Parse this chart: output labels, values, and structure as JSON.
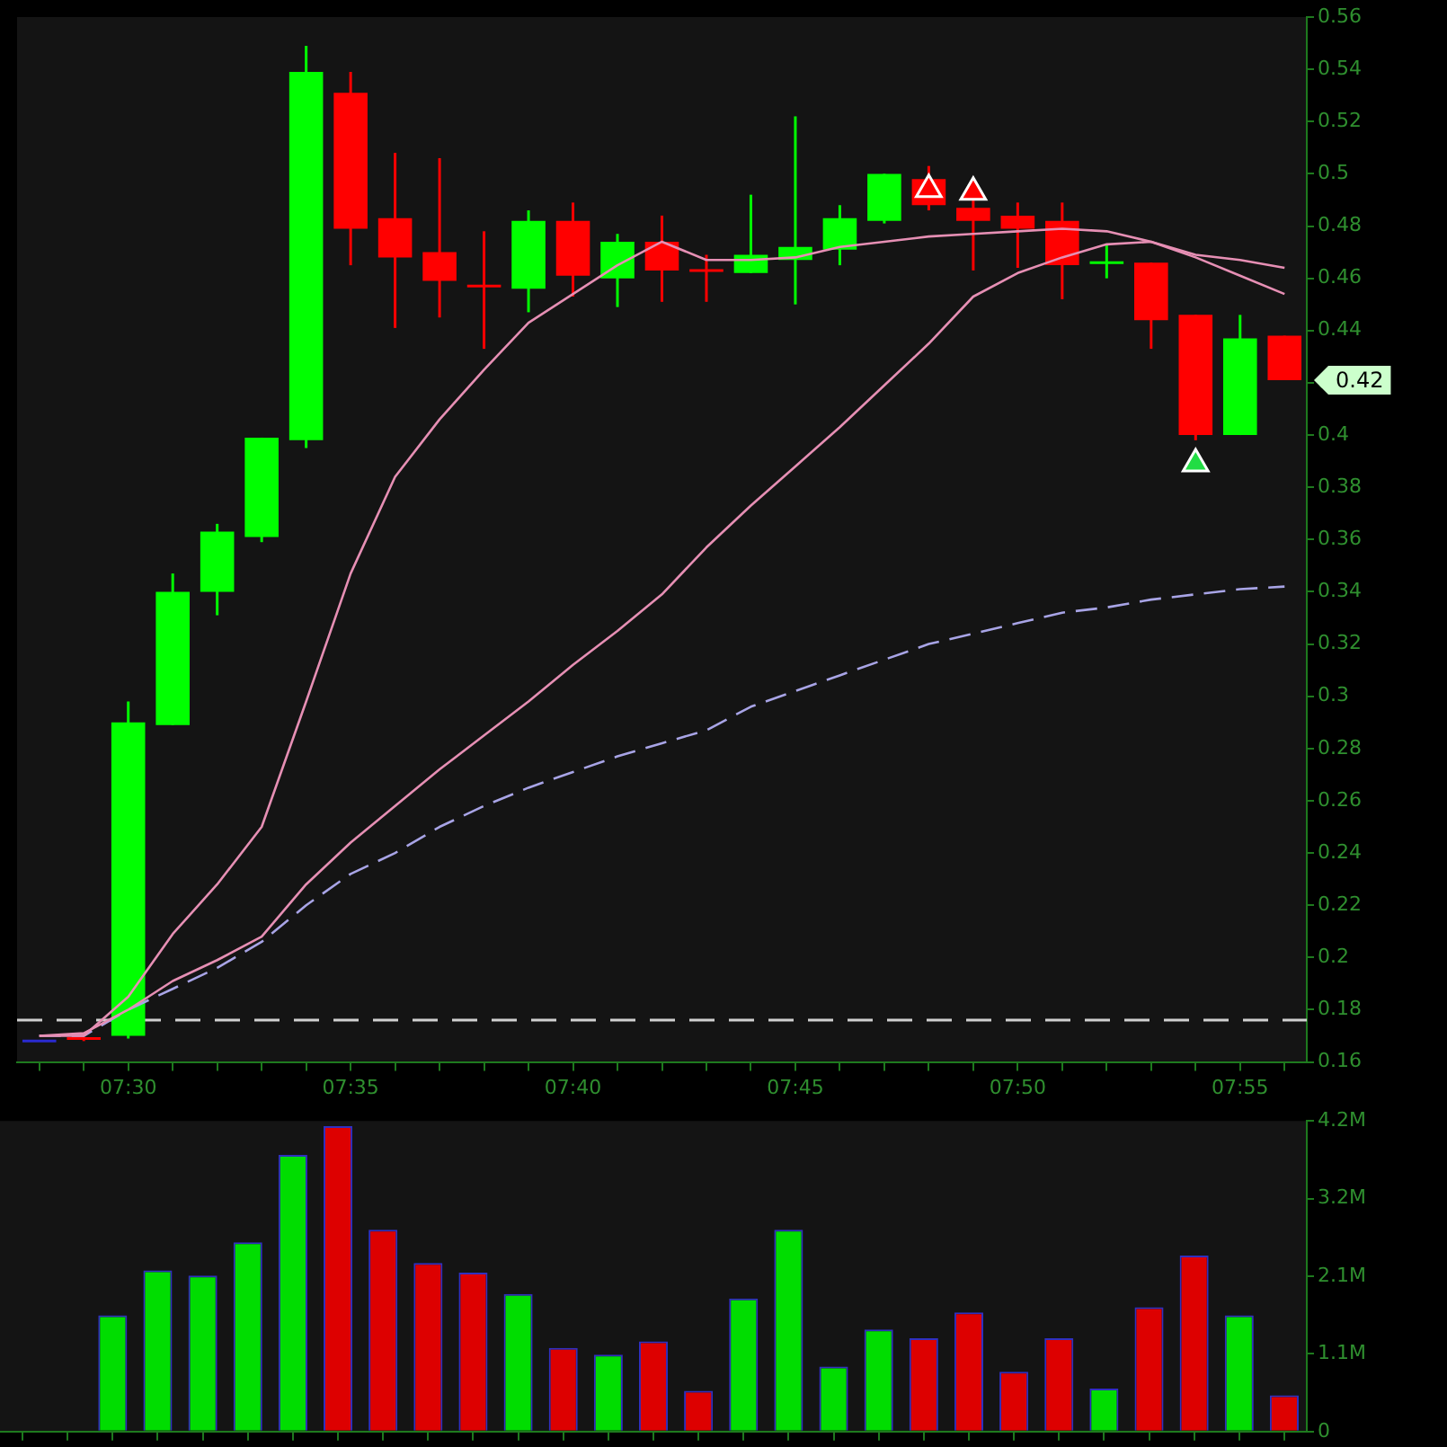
{
  "chart_data": [
    {
      "type": "candlestick",
      "categories": [
        null,
        null,
        "07:30",
        null,
        null,
        null,
        null,
        "07:35",
        null,
        null,
        null,
        null,
        "07:40",
        null,
        null,
        null,
        null,
        "07:45",
        null,
        null,
        null,
        null,
        "07:50",
        null,
        null,
        null,
        null,
        "07:55",
        null
      ],
      "ohlc": [
        [
          0.168,
          0.168,
          0.168,
          0.168
        ],
        [
          0.169,
          0.169,
          0.168,
          0.168
        ],
        [
          0.17,
          0.298,
          0.169,
          0.29
        ],
        [
          0.289,
          0.347,
          0.289,
          0.34
        ],
        [
          0.34,
          0.366,
          0.331,
          0.363
        ],
        [
          0.361,
          0.399,
          0.359,
          0.399
        ],
        [
          0.398,
          0.549,
          0.395,
          0.539
        ],
        [
          0.531,
          0.539,
          0.465,
          0.479
        ],
        [
          0.483,
          0.508,
          0.441,
          0.468
        ],
        [
          0.47,
          0.506,
          0.445,
          0.459
        ],
        [
          0.457,
          0.478,
          0.433,
          0.457
        ],
        [
          0.456,
          0.486,
          0.447,
          0.482
        ],
        [
          0.482,
          0.489,
          0.453,
          0.461
        ],
        [
          0.46,
          0.477,
          0.449,
          0.474
        ],
        [
          0.474,
          0.484,
          0.451,
          0.463
        ],
        [
          0.463,
          0.469,
          0.451,
          0.463
        ],
        [
          0.462,
          0.492,
          0.462,
          0.469
        ],
        [
          0.467,
          0.522,
          0.45,
          0.472
        ],
        [
          0.471,
          0.488,
          0.465,
          0.483
        ],
        [
          0.482,
          0.5,
          0.481,
          0.5
        ],
        [
          0.498,
          0.503,
          0.486,
          0.488
        ],
        [
          0.487,
          0.495,
          0.463,
          0.482
        ],
        [
          0.484,
          0.489,
          0.464,
          0.479
        ],
        [
          0.482,
          0.489,
          0.452,
          0.465
        ],
        [
          0.466,
          0.473,
          0.46,
          0.466
        ],
        [
          0.466,
          0.466,
          0.433,
          0.444
        ],
        [
          0.446,
          0.446,
          0.398,
          0.4
        ],
        [
          0.4,
          0.446,
          0.4,
          0.437
        ],
        [
          0.438,
          0.438,
          0.421,
          0.421
        ]
      ],
      "colors": [
        "#2a2ad0",
        "#ff0000",
        "#00ff00",
        "#00ff00",
        "#00ff00",
        "#00ff00",
        "#00ff00",
        "#ff0000",
        "#ff0000",
        "#ff0000",
        "#ff0000",
        "#00ff00",
        "#ff0000",
        "#00ff00",
        "#ff0000",
        "#ff0000",
        "#00ff00",
        "#00ff00",
        "#00ff00",
        "#00ff00",
        "#ff0000",
        "#ff0000",
        "#ff0000",
        "#ff0000",
        "#00ff00",
        "#ff0000",
        "#ff0000",
        "#00ff00",
        "#ff0000"
      ],
      "series": [
        {
          "type": "line",
          "color": "#e68fb4",
          "values": [
            0.17,
            0.17,
            0.185,
            0.209,
            0.228,
            0.25,
            0.298,
            0.347,
            0.384,
            0.406,
            0.425,
            0.443,
            0.454,
            0.465,
            0.474,
            0.467,
            0.467,
            0.468,
            0.472,
            0.474,
            0.476,
            0.477,
            0.478,
            0.479,
            0.478,
            0.474,
            0.468,
            0.461,
            0.454
          ]
        },
        {
          "type": "line",
          "color": "#e68fb4",
          "values": [
            0.17,
            0.171,
            0.18,
            0.191,
            0.199,
            0.208,
            0.228,
            0.244,
            0.258,
            0.272,
            0.285,
            0.298,
            0.312,
            0.325,
            0.339,
            0.357,
            0.373,
            0.388,
            0.403,
            0.419,
            0.435,
            0.453,
            0.462,
            0.468,
            0.473,
            0.474,
            0.469,
            0.467,
            0.464
          ]
        },
        {
          "type": "line",
          "color": "#a8a4e6",
          "line_style": "dashed",
          "values": [
            0.17,
            0.17,
            0.18,
            0.188,
            0.196,
            0.206,
            0.22,
            0.232,
            0.24,
            0.25,
            0.258,
            0.265,
            0.271,
            0.277,
            0.282,
            0.287,
            0.296,
            0.302,
            0.308,
            0.314,
            0.32,
            0.324,
            0.328,
            0.332,
            0.334,
            0.337,
            0.339,
            0.341,
            0.342
          ]
        },
        {
          "type": "scatter",
          "color": "#ff0000",
          "marker": "triangle",
          "values": [
            null,
            null,
            null,
            null,
            null,
            null,
            null,
            null,
            null,
            null,
            null,
            null,
            null,
            null,
            null,
            null,
            null,
            null,
            null,
            null,
            0.494,
            0.493,
            null,
            null,
            null,
            null,
            null,
            null,
            null
          ]
        },
        {
          "type": "scatter",
          "color": "#22dd44",
          "marker": "triangle",
          "values": [
            null,
            null,
            null,
            null,
            null,
            null,
            null,
            null,
            null,
            null,
            null,
            null,
            null,
            null,
            null,
            null,
            null,
            null,
            null,
            null,
            null,
            null,
            null,
            null,
            null,
            null,
            0.389,
            null,
            null
          ]
        }
      ],
      "ylim": [
        0.16,
        0.56
      ],
      "yticks": [
        0.16,
        0.18,
        0.2,
        0.22,
        0.24,
        0.26,
        0.28,
        0.3,
        0.32,
        0.34,
        0.36,
        0.38,
        0.4,
        0.42,
        0.44,
        0.46,
        0.48,
        0.5,
        0.52,
        0.54,
        0.56
      ],
      "ref_lines": [
        {
          "axis": "y",
          "value": 0.176,
          "color": "#d0d0d0",
          "line_style": "dashed"
        }
      ],
      "annotations": [
        "0.42"
      ],
      "grid": false,
      "legend": false
    },
    {
      "type": "bar",
      "categories": [
        null,
        null,
        null,
        null,
        null,
        null,
        null,
        null,
        null,
        null,
        null,
        null,
        null,
        null,
        null,
        null,
        null,
        null,
        null,
        null,
        null,
        null,
        null,
        null,
        null,
        null,
        null,
        null,
        null
      ],
      "values": [
        null,
        null,
        1570000,
        2180000,
        2110000,
        2560000,
        3740000,
        4130000,
        2730000,
        2280000,
        2150000,
        1860000,
        1130000,
        1040000,
        1220000,
        550000,
        1800000,
        2730000,
        880000,
        1380000,
        1260000,
        1610000,
        810000,
        1260000,
        580000,
        1680000,
        2380000,
        1570000,
        490000
      ],
      "colors": [
        "#00dd00",
        "#dd0000",
        "#00dd00",
        "#00dd00",
        "#00dd00",
        "#00dd00",
        "#00dd00",
        "#dd0000",
        "#dd0000",
        "#dd0000",
        "#dd0000",
        "#00dd00",
        "#dd0000",
        "#00dd00",
        "#dd0000",
        "#dd0000",
        "#00dd00",
        "#00dd00",
        "#00dd00",
        "#00dd00",
        "#dd0000",
        "#dd0000",
        "#dd0000",
        "#dd0000",
        "#00dd00",
        "#dd0000",
        "#dd0000",
        "#00dd00",
        "#dd0000"
      ],
      "ylim": [
        0,
        4200000
      ],
      "yticks": [
        0,
        {
          "value": 1050000,
          "label": "1.1M"
        },
        {
          "value": 2100000,
          "label": "2.1M"
        },
        {
          "value": 3150000,
          "label": "3.2M"
        },
        {
          "value": 4200000,
          "label": "4.2M"
        }
      ],
      "tick_labels": "y",
      "grid": false,
      "legend": false
    }
  ]
}
